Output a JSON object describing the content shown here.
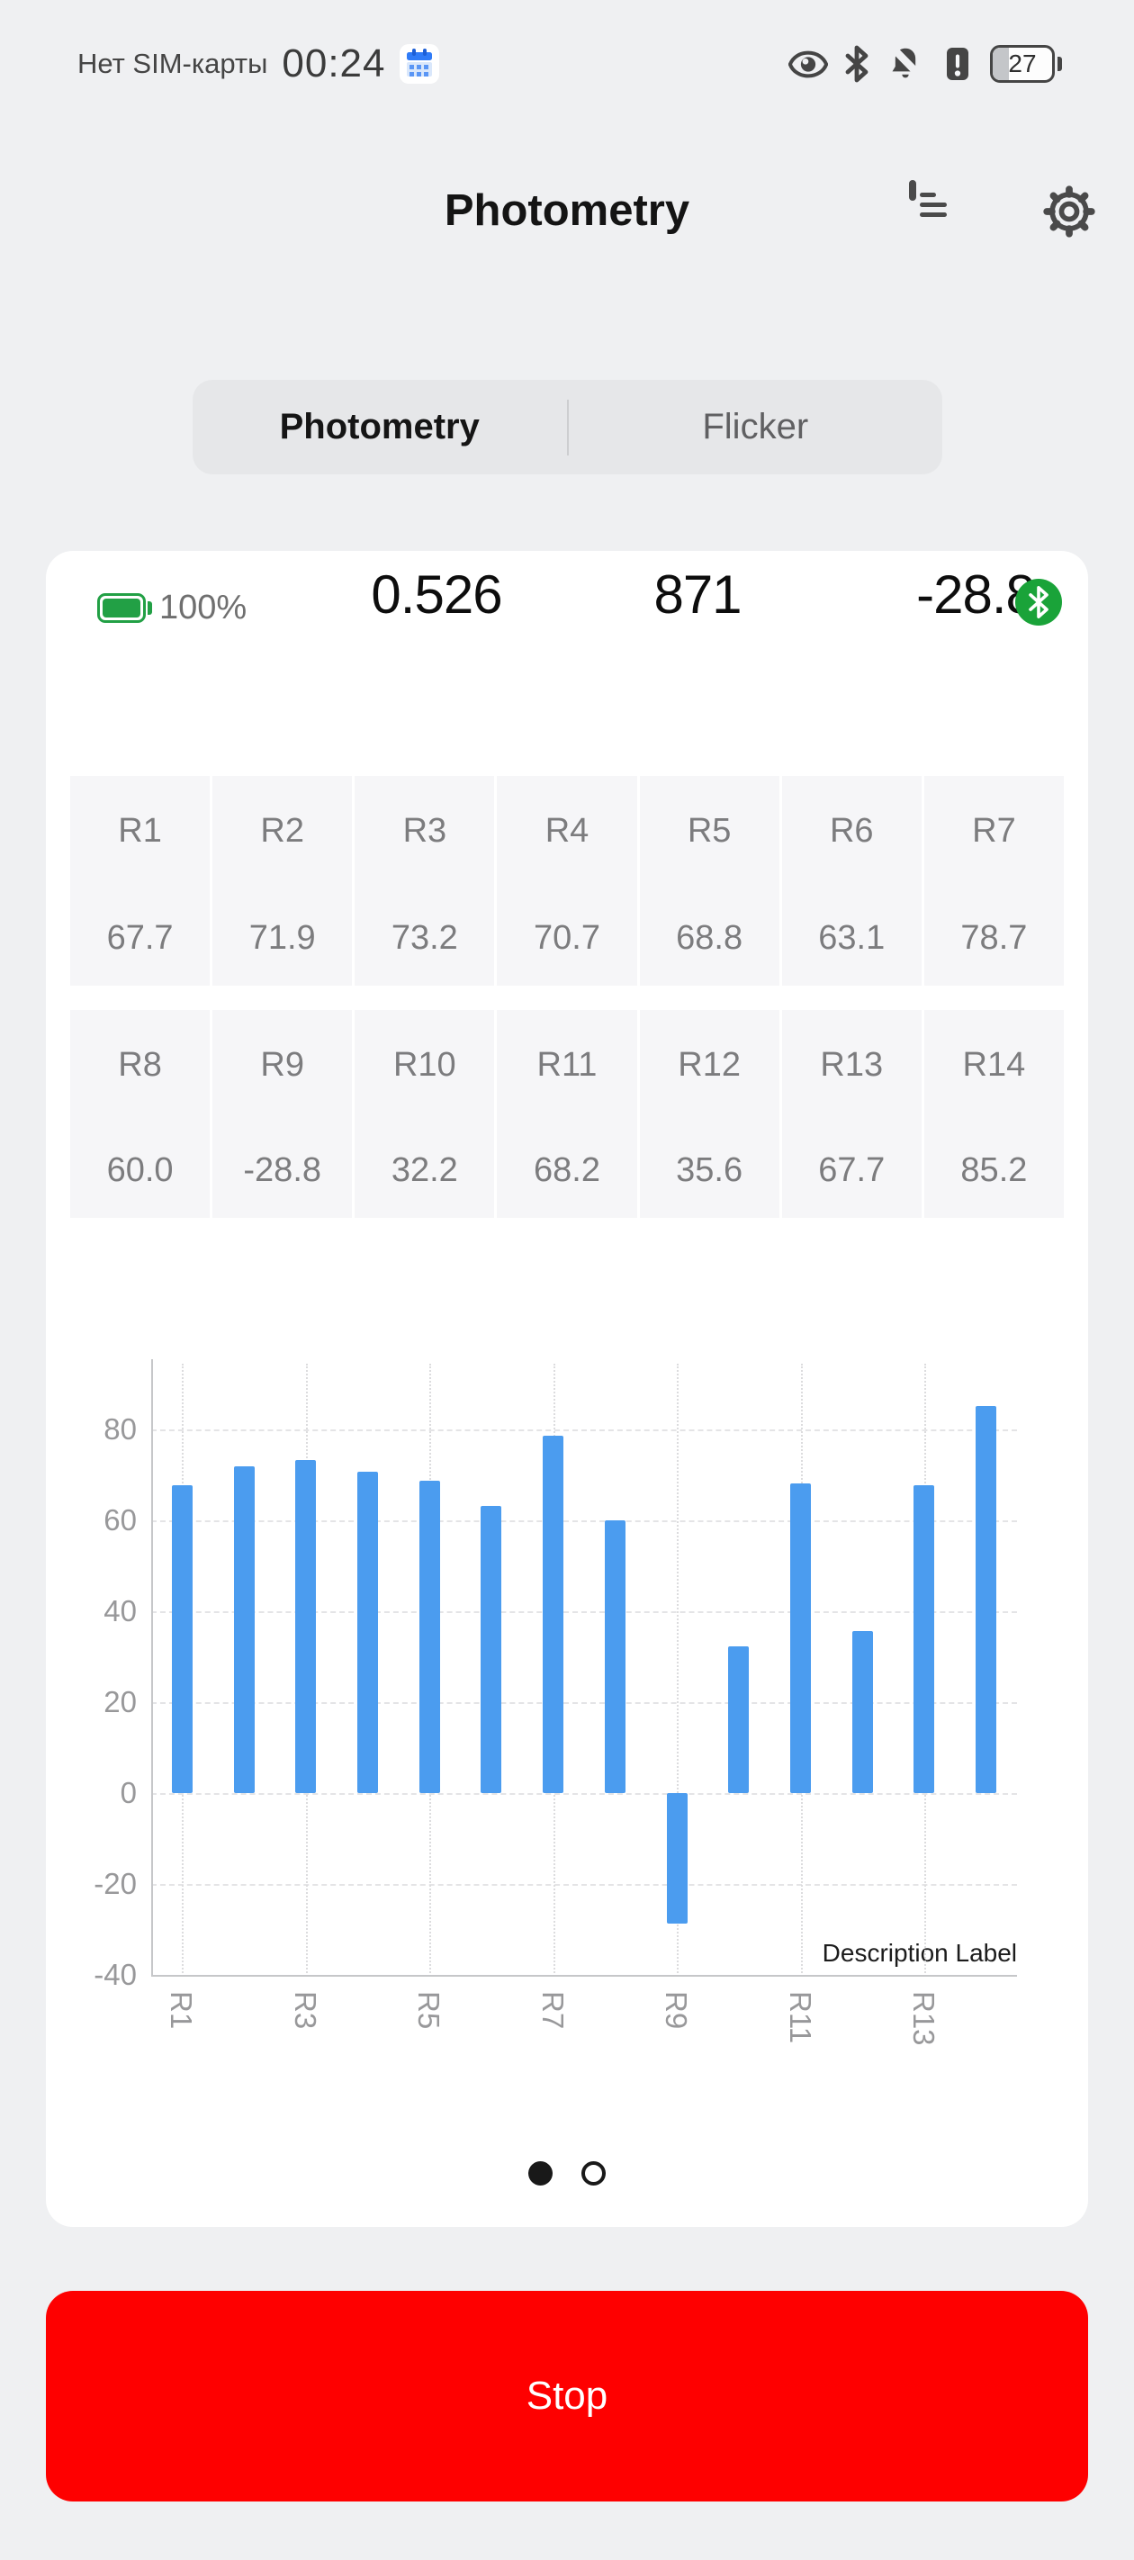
{
  "status_bar": {
    "carrier_text": "Нет SIM-карты",
    "time": "00:24",
    "battery_percent": "27",
    "icons": [
      "calendar-icon",
      "eye-icon",
      "bluetooth-icon",
      "notifications-off-icon",
      "sim-alert-icon",
      "battery-icon"
    ]
  },
  "header": {
    "title": "Photometry",
    "icons": [
      "report-icon",
      "settings-gear-icon"
    ]
  },
  "tabs": {
    "items": [
      {
        "label": "Photometry",
        "active": true
      },
      {
        "label": "Flicker",
        "active": false
      }
    ]
  },
  "meter": {
    "battery_label": "100%",
    "values": [
      "0.526",
      "871",
      "-28.8"
    ],
    "bluetooth_connected_badge": "bluetooth-icon"
  },
  "tables": [
    {
      "headers": [
        "R1",
        "R2",
        "R3",
        "R4",
        "R5",
        "R6",
        "R7"
      ],
      "values": [
        "67.7",
        "71.9",
        "73.2",
        "70.7",
        "68.8",
        "63.1",
        "78.7"
      ]
    },
    {
      "headers": [
        "R8",
        "R9",
        "R10",
        "R11",
        "R12",
        "R13",
        "R14"
      ],
      "values": [
        "60.0",
        "-28.8",
        "32.2",
        "68.2",
        "35.6",
        "67.7",
        "85.2"
      ]
    }
  ],
  "chart_data": {
    "type": "bar",
    "categories": [
      "R1",
      "R2",
      "R3",
      "R4",
      "R5",
      "R6",
      "R7",
      "R8",
      "R9",
      "R10",
      "R11",
      "R12",
      "R13",
      "R14"
    ],
    "values": [
      67.7,
      71.9,
      73.2,
      70.7,
      68.8,
      63.1,
      78.7,
      60.0,
      -28.8,
      32.2,
      68.2,
      35.6,
      67.7,
      85.2
    ],
    "x_tick_labels": [
      "R1",
      "R3",
      "R5",
      "R7",
      "R9",
      "R11",
      "R13"
    ],
    "y_ticks": [
      80,
      60,
      40,
      20,
      0,
      -20,
      -40
    ],
    "ylim": [
      -40,
      95
    ],
    "annotation": "Description Label",
    "bar_color": "#4B9CEF",
    "grid": "horizontal dashed, vertical dotted at odd categories",
    "legend": null
  },
  "pager": {
    "dots": [
      "active",
      "inactive"
    ]
  },
  "stop_button": {
    "label": "Stop"
  },
  "colors": {
    "bar_blue": "#4B9CEF",
    "stop_red": "#FE0000",
    "badge_green": "#1AA339",
    "battery_green": "#22A045",
    "page_background": "#EFF0F2",
    "card_background": "#FFFFFF"
  }
}
